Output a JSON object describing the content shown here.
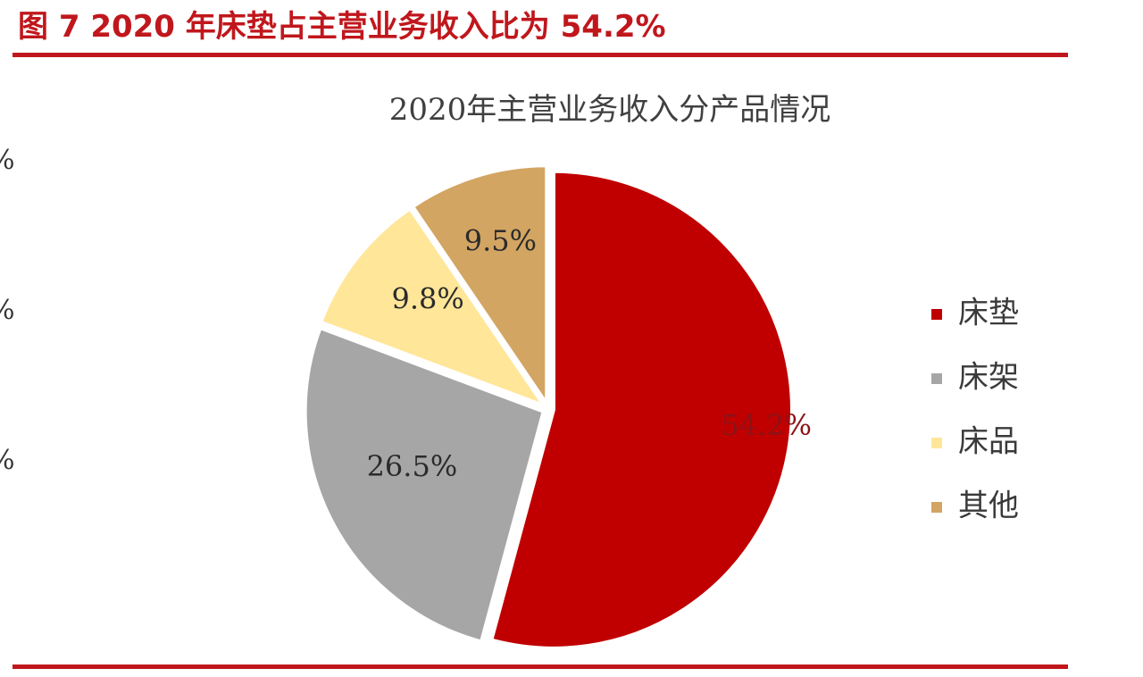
{
  "figure": {
    "title": "图 7 2020 年床垫占主营业务收入比为 54.2%",
    "left_fragments": [
      "%",
      "%",
      "%"
    ]
  },
  "colors": {
    "accent": "#c0171c",
    "slice_colors": [
      "#c00000",
      "#a6a6a6",
      "#ffe699",
      "#d3a562"
    ]
  },
  "chart_data": {
    "type": "pie",
    "title": "2020年主营业务收入分产品情况",
    "categories": [
      "床垫",
      "床架",
      "床品",
      "其他"
    ],
    "values": [
      54.2,
      26.5,
      9.8,
      9.5
    ],
    "data_labels": [
      "54.2%",
      "26.5%",
      "9.8%",
      "9.5%"
    ],
    "unit": "%",
    "legend_position": "right"
  }
}
